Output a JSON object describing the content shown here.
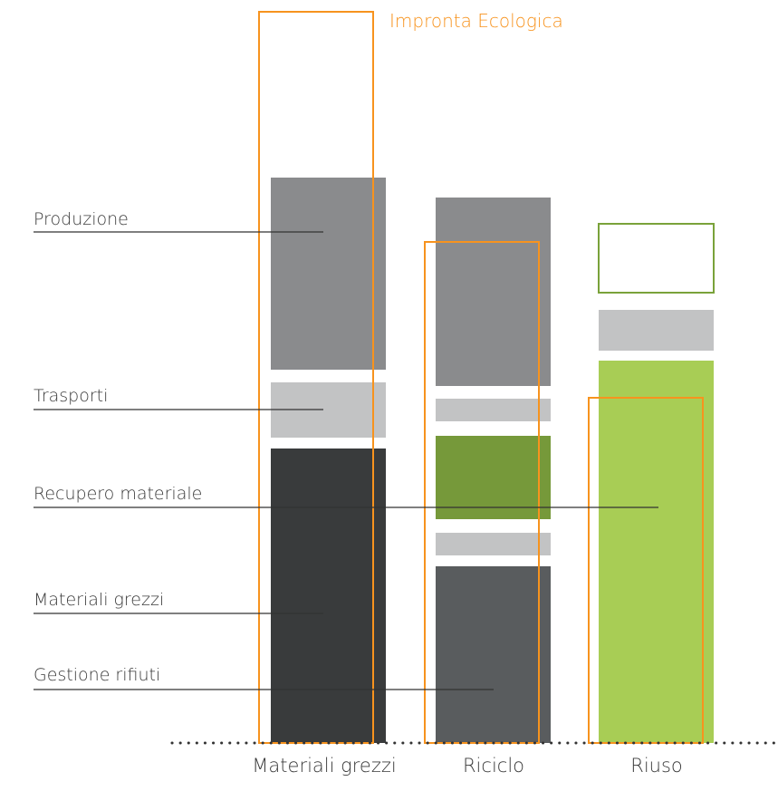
{
  "title": "Impronta Ecologica",
  "colors": {
    "footprint": "#f7931e",
    "produzione": "#8a8b8d",
    "trasporti": "#c2c3c4",
    "materiali_grezzi": "#393b3c",
    "gestione_rifiuti": "#595c5e",
    "recupero_riciclo": "#76993a",
    "recupero_riuso": "#a8cd55",
    "riuso_outline": "#7aa23a",
    "leader": "#333333",
    "baseline": "#333333"
  },
  "legend": {
    "produzione": "Produzione",
    "trasporti": "Trasporti",
    "recupero_materiale": "Recupero materiale",
    "materiali_grezzi": "Materiali grezzi",
    "gestione_rifiuti": "Gestione rifiuti"
  },
  "columns": {
    "materiali_grezzi": "Materiali grezzi",
    "riciclo": "Riciclo",
    "riuso": "Riuso"
  }
}
